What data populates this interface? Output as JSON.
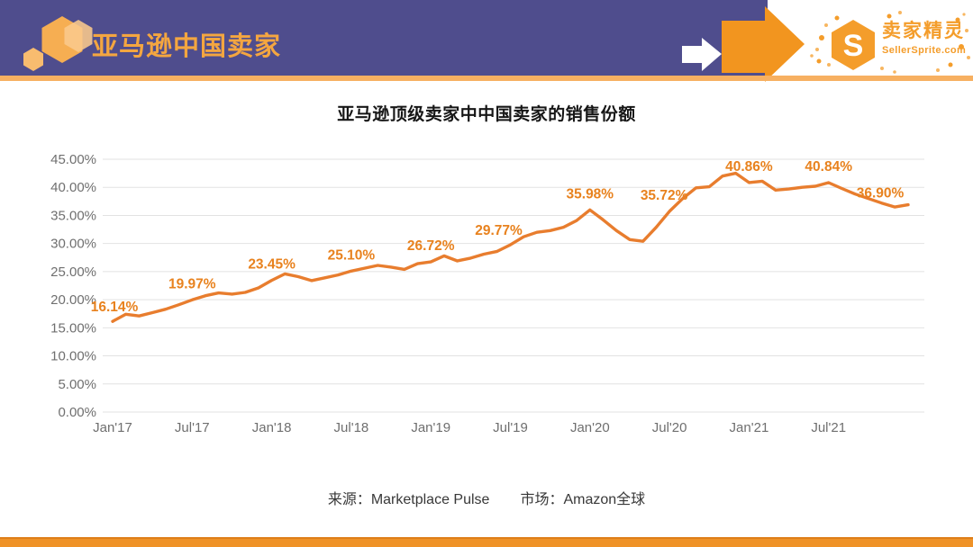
{
  "header": {
    "brand": "亚马逊中国卖家",
    "logo": {
      "monogram": "S",
      "name": "卖家精灵",
      "domain": "SellerSprite.com"
    }
  },
  "chart_data": {
    "type": "line",
    "title": "亚马逊顶级卖家中中国卖家的销售份额",
    "x": [
      "2017-01",
      "2017-02",
      "2017-03",
      "2017-04",
      "2017-05",
      "2017-06",
      "2017-07",
      "2017-08",
      "2017-09",
      "2017-10",
      "2017-11",
      "2017-12",
      "2018-01",
      "2018-02",
      "2018-03",
      "2018-04",
      "2018-05",
      "2018-06",
      "2018-07",
      "2018-08",
      "2018-09",
      "2018-10",
      "2018-11",
      "2018-12",
      "2019-01",
      "2019-02",
      "2019-03",
      "2019-04",
      "2019-05",
      "2019-06",
      "2019-07",
      "2019-08",
      "2019-09",
      "2019-10",
      "2019-11",
      "2019-12",
      "2020-01",
      "2020-02",
      "2020-03",
      "2020-04",
      "2020-05",
      "2020-06",
      "2020-07",
      "2020-08",
      "2020-09",
      "2020-10",
      "2020-11",
      "2020-12",
      "2021-01",
      "2021-02",
      "2021-03",
      "2021-04",
      "2021-05",
      "2021-06",
      "2021-07",
      "2021-08",
      "2021-09",
      "2021-10",
      "2021-11",
      "2021-12",
      "2022-01"
    ],
    "values": [
      16.14,
      17.4,
      17.1,
      17.7,
      18.3,
      19.1,
      19.97,
      20.7,
      21.2,
      21.0,
      21.3,
      22.1,
      23.45,
      24.6,
      24.1,
      23.4,
      23.9,
      24.4,
      25.1,
      25.6,
      26.1,
      25.8,
      25.4,
      26.4,
      26.72,
      27.8,
      26.9,
      27.4,
      28.1,
      28.6,
      29.77,
      31.2,
      32.0,
      32.3,
      32.9,
      34.1,
      35.98,
      34.2,
      32.3,
      30.7,
      30.4,
      32.9,
      35.72,
      38.0,
      39.9,
      40.1,
      42.0,
      42.5,
      40.86,
      41.1,
      39.5,
      39.7,
      40.0,
      40.2,
      40.84,
      39.8,
      38.8,
      38.0,
      37.2,
      36.5,
      36.9
    ],
    "x_ticks": [
      {
        "index": 0,
        "label": "Jan'17"
      },
      {
        "index": 6,
        "label": "Jul'17"
      },
      {
        "index": 12,
        "label": "Jan'18"
      },
      {
        "index": 18,
        "label": "Jul'18"
      },
      {
        "index": 24,
        "label": "Jan'19"
      },
      {
        "index": 30,
        "label": "Jul'19"
      },
      {
        "index": 36,
        "label": "Jan'20"
      },
      {
        "index": 42,
        "label": "Jul'20"
      },
      {
        "index": 48,
        "label": "Jan'21"
      },
      {
        "index": 54,
        "label": "Jul'21"
      }
    ],
    "y_ticks": [
      "0.00%",
      "5.00%",
      "10.00%",
      "15.00%",
      "20.00%",
      "25.00%",
      "30.00%",
      "35.00%",
      "40.00%",
      "45.00%"
    ],
    "ylim": [
      0,
      45
    ],
    "grid": true,
    "legend": false,
    "labeled_points": [
      {
        "index": 0,
        "label": "16.14%"
      },
      {
        "index": 6,
        "label": "19.97%"
      },
      {
        "index": 12,
        "label": "23.45%"
      },
      {
        "index": 18,
        "label": "25.10%"
      },
      {
        "index": 24,
        "label": "26.72%"
      },
      {
        "index": 30,
        "label": "29.77%"
      },
      {
        "index": 36,
        "label": "35.98%"
      },
      {
        "index": 42,
        "label": "35.72%"
      },
      {
        "index": 48,
        "label": "40.86%"
      },
      {
        "index": 54,
        "label": "40.84%"
      },
      {
        "index": 60,
        "label": "36.90%"
      }
    ],
    "line_color": "#E87D2E",
    "data_label_color": "#E8821E",
    "grid_color": "#E2E2E2",
    "axis_text_color": "#6F6F6F"
  },
  "source": {
    "source_label": "来源：Marketplace Pulse",
    "market_label": "市场：Amazon全球"
  }
}
